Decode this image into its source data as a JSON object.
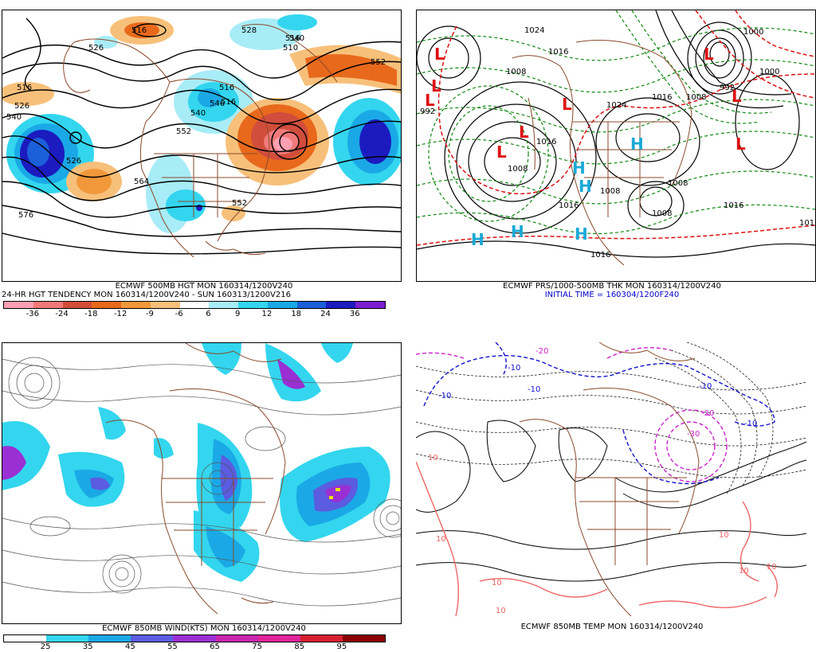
{
  "panels": {
    "hgt500": {
      "line1": "ECMWF 500MB HGT MON 160314/1200V240",
      "line2": "24-HR HGT TENDENCY MON 160314/1200V240 - SUN 160313/1200V216",
      "colorbar": {
        "colors": [
          "#ff9fb3",
          "#f07a7a",
          "#d14d3c",
          "#e8691c",
          "#f0983a",
          "#f7c07a",
          "#ffffff",
          "#a8ecf7",
          "#33d6ee",
          "#1aa9e6",
          "#1b5fd9",
          "#1c1bc0",
          "#7b1fd0"
        ],
        "ticks": [
          "-36",
          "-24",
          "-18",
          "-12",
          "-9",
          "-6",
          "6",
          "9",
          "12",
          "18",
          "24",
          "36"
        ]
      },
      "contour_labels": [
        "516",
        "526",
        "516",
        "516",
        "540",
        "526",
        "526",
        "540",
        "546",
        "552",
        "564",
        "552",
        "576",
        "516",
        "528",
        "510",
        "516",
        "552",
        "540"
      ]
    },
    "prs": {
      "line1": "ECMWF PRS/1000-500MB THK MON 160314/1200V240",
      "line2": "INITIAL TIME = 160304/1200F240",
      "highs": [
        "H",
        "H",
        "H",
        "H",
        "H",
        "H"
      ],
      "lows": [
        "L",
        "L",
        "L",
        "L",
        "L",
        "L",
        "L",
        "L",
        "L"
      ],
      "contour_labels": [
        "992",
        "1024",
        "1016",
        "1008",
        "1024",
        "1016",
        "1008",
        "1008",
        "992",
        "1000",
        "1016",
        "1008",
        "1016",
        "1016",
        "1016",
        "1016",
        "1008",
        "1008",
        "1000"
      ]
    },
    "wind850": {
      "line1": "ECMWF 850MB WIND(KTS) MON 160314/1200V240",
      "colorbar": {
        "colors": [
          "#ffffff",
          "#33d6ee",
          "#1aa9e6",
          "#5b5ce0",
          "#9a2fd4",
          "#c826b0",
          "#e0249a",
          "#d81f30",
          "#8b0000"
        ],
        "ticks": [
          "25",
          "35",
          "45",
          "55",
          "65",
          "75",
          "85",
          "95"
        ]
      }
    },
    "temp850": {
      "line1": "ECMWF 850MB TEMP MON 160314/1200V240",
      "contour_labels": [
        "-20",
        "-10",
        "-10",
        "-10",
        "-10",
        "-10",
        "-20",
        "-30",
        "10",
        "10",
        "10",
        "10",
        "10",
        "10",
        "10"
      ]
    },
    "colors": {
      "geography": "#8b4a2b",
      "contour": "#000000",
      "pressure_high": "#1aa9d6",
      "pressure_low": "#dd1111",
      "thickness": "#118811",
      "temp_cold": "#1111cc",
      "temp_very_cold": "#cc22cc",
      "temp_warm": "#ee6666"
    }
  }
}
